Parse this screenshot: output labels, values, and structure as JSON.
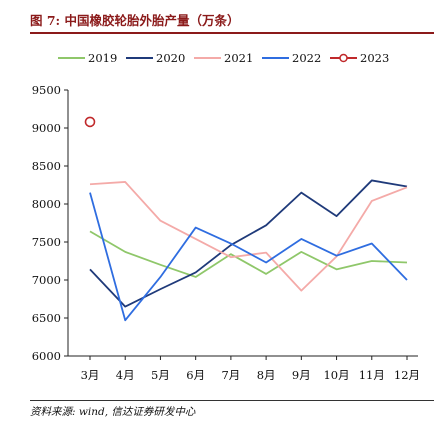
{
  "figure": {
    "title": "图 7:  中国橡胶轮胎外胎产量（万条）",
    "source": "资料来源: wind, 信达证券研发中心"
  },
  "chart_data": {
    "type": "line",
    "title": "中国橡胶轮胎外胎产量（万条）",
    "xlabel": "",
    "ylabel": "",
    "categories": [
      "3月",
      "4月",
      "5月",
      "6月",
      "7月",
      "8月",
      "9月",
      "10月",
      "11月",
      "12月"
    ],
    "ylim": [
      6000,
      9500
    ],
    "yticks": [
      "6000",
      "6500",
      "7000",
      "7500",
      "8000",
      "8500",
      "9000",
      "9500"
    ],
    "grid": false,
    "legend_position": "top",
    "series": [
      {
        "name": "2019",
        "color": "#8fc76a",
        "marker": "none",
        "values": [
          7640,
          7370,
          7200,
          7040,
          7340,
          7080,
          7370,
          7140,
          7250,
          7230
        ]
      },
      {
        "name": "2020",
        "color": "#1f3a7a",
        "marker": "none",
        "values": [
          7140,
          6650,
          6880,
          7100,
          7460,
          7720,
          8150,
          7840,
          8310,
          8230
        ]
      },
      {
        "name": "2021",
        "color": "#f4aaa8",
        "marker": "none",
        "values": [
          8260,
          8290,
          7780,
          7540,
          7300,
          7360,
          6860,
          7310,
          8040,
          8220
        ]
      },
      {
        "name": "2022",
        "color": "#2f6de0",
        "marker": "none",
        "values": [
          8150,
          6470,
          7040,
          7690,
          7480,
          7230,
          7540,
          7320,
          7480,
          7000
        ]
      },
      {
        "name": "2023",
        "color": "#c0292b",
        "marker": "circle",
        "values": [
          9080,
          null,
          null,
          null,
          null,
          null,
          null,
          null,
          null,
          null
        ]
      }
    ]
  }
}
